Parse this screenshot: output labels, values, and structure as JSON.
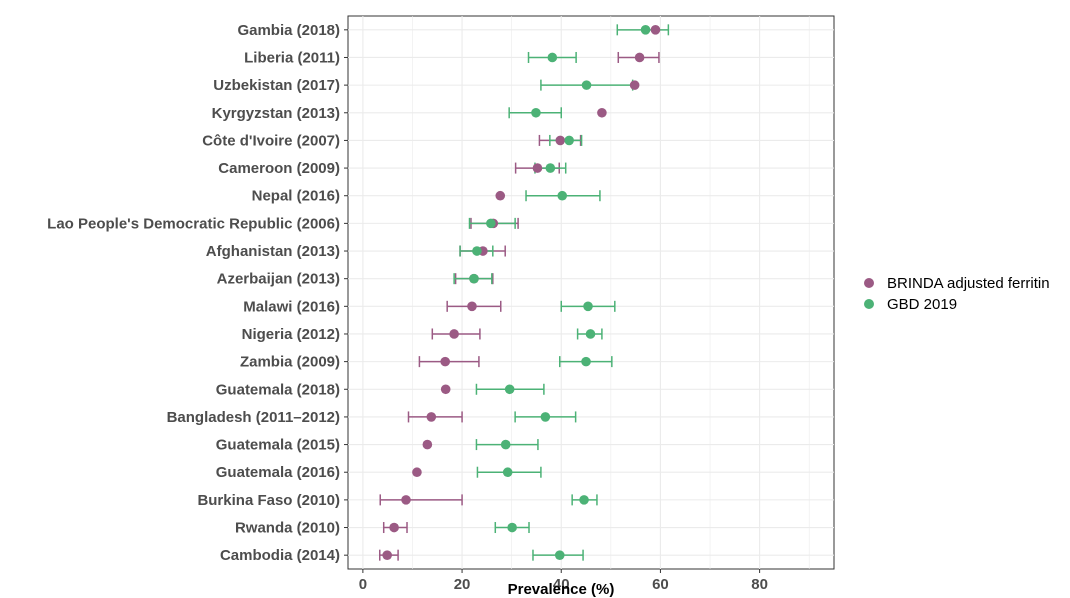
{
  "chart_data": {
    "type": "scatter",
    "xlabel": "Prevalence (%)",
    "xlim": [
      -3,
      95
    ],
    "xticks": [
      0,
      20,
      40,
      60,
      80
    ],
    "grid": true,
    "legend_position": "right",
    "categories": [
      "Gambia (2018)",
      "Liberia (2011)",
      "Uzbekistan (2017)",
      "Kyrgyzstan (2013)",
      "Côte d'Ivoire (2007)",
      "Cameroon (2009)",
      "Nepal (2016)",
      "Lao People's Democratic Republic (2006)",
      "Afghanistan (2013)",
      "Azerbaijan (2013)",
      "Malawi (2016)",
      "Nigeria (2012)",
      "Zambia (2009)",
      "Guatemala (2018)",
      "Bangladesh (2011–2012)",
      "Guatemala (2015)",
      "Guatemala (2016)",
      "Burkina Faso (2010)",
      "Rwanda (2010)",
      "Cambodia (2014)"
    ],
    "series": [
      {
        "name": "BRINDA adjusted ferritin",
        "color": "#9b5a84",
        "values": [
          59,
          55.8,
          54.8,
          48.2,
          39.8,
          35.2,
          27.7,
          26.3,
          24.2,
          22.4,
          22.0,
          18.4,
          16.6,
          16.7,
          13.8,
          13.0,
          10.9,
          8.7,
          6.3,
          4.9
        ],
        "lower": [
          null,
          51.5,
          null,
          null,
          35.6,
          30.8,
          null,
          21.8,
          19.6,
          18.7,
          17.0,
          14.0,
          11.4,
          null,
          9.2,
          null,
          null,
          3.5,
          4.2,
          3.4
        ],
        "upper": [
          null,
          59.7,
          null,
          null,
          43.9,
          39.6,
          null,
          31.3,
          28.7,
          26.2,
          27.8,
          23.6,
          23.4,
          null,
          20.0,
          null,
          null,
          20.0,
          8.9,
          7.1
        ]
      },
      {
        "name": "GBD 2019",
        "color": "#4cb276",
        "values": [
          57.0,
          38.2,
          45.1,
          34.9,
          41.6,
          37.8,
          40.2,
          25.8,
          23.0,
          22.4,
          45.4,
          45.9,
          45.0,
          29.6,
          36.8,
          28.8,
          29.2,
          44.6,
          30.1,
          39.7
        ],
        "lower": [
          51.3,
          33.4,
          35.9,
          29.5,
          37.7,
          34.7,
          32.9,
          21.5,
          19.6,
          18.4,
          40.0,
          43.3,
          39.7,
          22.9,
          30.7,
          22.9,
          23.1,
          42.2,
          26.7,
          34.3
        ],
        "upper": [
          61.6,
          43.0,
          54.4,
          40.0,
          44.1,
          40.9,
          47.8,
          30.7,
          26.2,
          26.0,
          50.8,
          48.2,
          50.2,
          36.5,
          42.9,
          35.3,
          35.9,
          47.2,
          33.5,
          44.4
        ]
      }
    ]
  }
}
